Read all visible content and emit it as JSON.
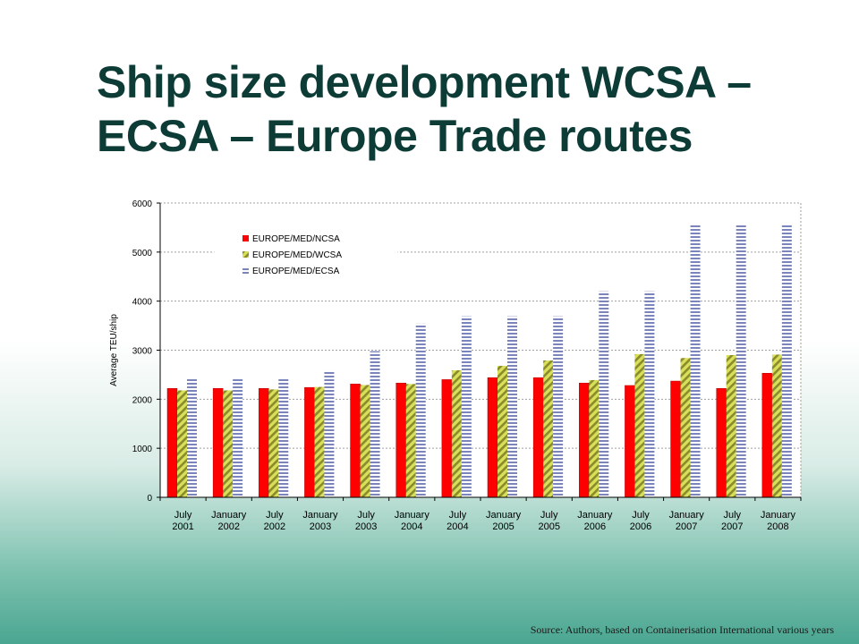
{
  "title": {
    "line1": "Ship size development WCSA –",
    "line2": "ECSA – Europe Trade routes"
  },
  "source": "Source: Authors, based on Containerisation International various years",
  "chart_data": {
    "type": "bar",
    "ylabel": "Average TEU/ship",
    "ylim": [
      0,
      6000
    ],
    "yticks": [
      0,
      1000,
      2000,
      3000,
      4000,
      5000,
      6000
    ],
    "grid": true,
    "legend_position": "top-left",
    "categories": [
      [
        "July",
        "2001"
      ],
      [
        "January",
        "2002"
      ],
      [
        "July",
        "2002"
      ],
      [
        "January",
        "2003"
      ],
      [
        "July",
        "2003"
      ],
      [
        "January",
        "2004"
      ],
      [
        "July",
        "2004"
      ],
      [
        "January",
        "2005"
      ],
      [
        "July",
        "2005"
      ],
      [
        "January",
        "2006"
      ],
      [
        "July",
        "2006"
      ],
      [
        "January",
        "2007"
      ],
      [
        "July",
        "2007"
      ],
      [
        "January",
        "2008"
      ]
    ],
    "series": [
      {
        "name": "EUROPE/MED/NCSA",
        "color": "#ff0000",
        "pattern": "solid",
        "values": [
          2220,
          2220,
          2220,
          2240,
          2310,
          2330,
          2400,
          2440,
          2440,
          2330,
          2280,
          2370,
          2220,
          2530
        ]
      },
      {
        "name": "EUROPE/MED/WCSA",
        "color": "#c8d84a",
        "pattern": "diagonal",
        "values": [
          2180,
          2180,
          2200,
          2250,
          2290,
          2310,
          2590,
          2680,
          2790,
          2390,
          2920,
          2840,
          2900,
          2910
        ]
      },
      {
        "name": "EUROPE/MED/ECSA",
        "color": "#8088c0",
        "pattern": "horizontal",
        "values": [
          2440,
          2440,
          2440,
          2590,
          2980,
          3540,
          3690,
          3690,
          3690,
          4200,
          4200,
          5550,
          5550,
          5550
        ]
      }
    ]
  }
}
